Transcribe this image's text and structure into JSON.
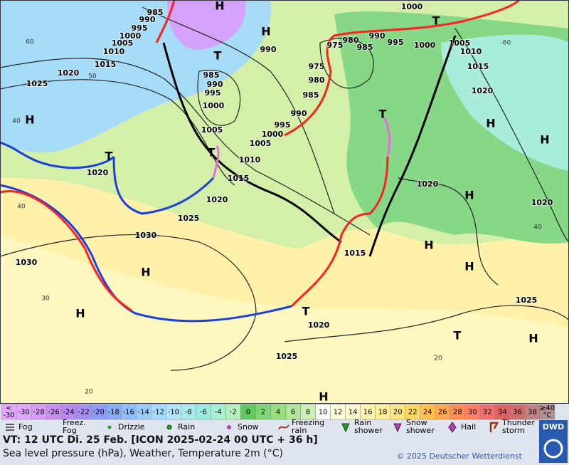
{
  "map": {
    "isobar_labels": [
      985,
      990,
      995,
      1000,
      1005,
      1010,
      1015,
      1020,
      1025,
      985,
      990,
      995,
      1000,
      1005,
      1010,
      1015,
      1020,
      1025,
      1030,
      1030,
      1020,
      990,
      980,
      975,
      985,
      990,
      995,
      1000,
      1000,
      1005,
      1010,
      1015,
      1020,
      975,
      980,
      985,
      990,
      995,
      1000,
      1005,
      1020,
      1020,
      1015,
      1025,
      1020,
      1025
    ],
    "isotherm_labels": [
      60,
      50,
      40,
      40,
      30,
      20,
      -60,
      40,
      20
    ],
    "highs": [
      "H",
      "H",
      "H",
      "H",
      "H",
      "H",
      "H",
      "H",
      "H",
      "H",
      "H",
      "H"
    ],
    "lows": [
      "T",
      "T",
      "T",
      "T",
      "T",
      "T",
      "T"
    ]
  },
  "temperature_scale": {
    "min_label": "<",
    "values": [
      -30,
      -28,
      -26,
      -24,
      -22,
      -20,
      -18,
      -16,
      -14,
      -12,
      -10,
      -8,
      -6,
      -4,
      -2,
      0,
      2,
      4,
      6,
      8,
      10,
      12,
      14,
      16,
      18,
      20,
      22,
      24,
      26,
      28,
      30,
      32,
      34,
      36,
      38
    ],
    "colors": [
      "#e2a8ff",
      "#d69cf6",
      "#c98fee",
      "#b987f0",
      "#a78ff2",
      "#8f9bf6",
      "#8aabf8",
      "#90bdfa",
      "#9bcdff",
      "#a8daff",
      "#b5e6ff",
      "#a8ecf0",
      "#9aeee0",
      "#a8f0d0",
      "#b5f0c0",
      "#5fc95f",
      "#7ed672",
      "#98df80",
      "#b2e699",
      "#ccefb3",
      "#ffffff",
      "#ffffe0",
      "#fffacc",
      "#fff4b0",
      "#ffee99",
      "#ffe680",
      "#ffd966",
      "#ffc24f",
      "#ffa84f",
      "#ff8f50",
      "#ff7f66",
      "#f07070",
      "#e06262",
      "#d06c6c",
      "#c08282"
    ],
    "max_label": "≥40",
    "unit": "°C"
  },
  "legend": [
    [
      "Fog"
    ],
    [
      "Freez.",
      "Fog"
    ],
    [
      "Drizzle"
    ],
    [
      "Rain"
    ],
    [
      "Snow"
    ],
    [
      "Freezing",
      "rain"
    ],
    [
      "Rain",
      "shower"
    ],
    [
      "Snow",
      "shower"
    ],
    [
      "Hail"
    ],
    [
      "Thunder",
      "storm"
    ]
  ],
  "footer": {
    "valid_time": "VT: 12 UTC Di.  25 Feb. [ICON 2025-02-24  00 UTC + 36 h]",
    "description": "Sea level pressure (hPa), Weather, Temperature 2m (°C)",
    "copyright": "© 2025 Deutscher Wetterdienst",
    "logo": "DWD"
  }
}
